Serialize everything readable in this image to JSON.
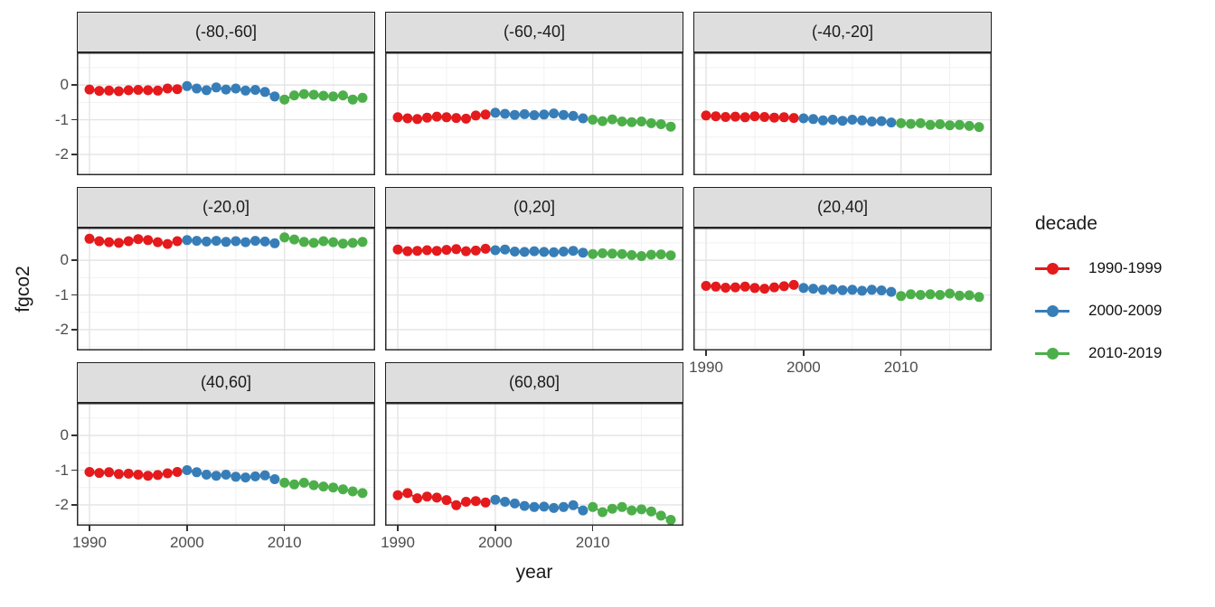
{
  "figure": {
    "background": "#FFFFFF"
  },
  "axes": {
    "xlabel": "year",
    "ylabel": "fgco2",
    "x_tick_labels": [
      "1990",
      "2000",
      "2010"
    ],
    "y_tick_labels": [
      "0",
      "-1",
      "-2"
    ]
  },
  "legend": {
    "title": "decade",
    "items": [
      {
        "label": "1990-1999",
        "color": "#E41A1C"
      },
      {
        "label": "2000-2009",
        "color": "#377EB8"
      },
      {
        "label": "2010-2019",
        "color": "#4DAF4A"
      }
    ]
  },
  "chart_data": {
    "type": "line",
    "title": "",
    "xlabel": "year",
    "ylabel": "fgco2",
    "facet_variable": "latitude band",
    "legend_position": "right",
    "grid": "major+minor",
    "x_tick_values": [
      1990,
      2000,
      2010
    ],
    "y_tick_values": [
      0,
      -1,
      -2
    ],
    "x_minor_ticks": [
      1995,
      2005,
      2015
    ],
    "y_minor_ticks": [
      0.5,
      -0.5,
      -1.5,
      -2.5
    ],
    "xlim": [
      1988.7,
      2019.3
    ],
    "ylim": [
      -2.6,
      0.94
    ],
    "series_colors": {
      "1990-1999": "#E41A1C",
      "2000-2009": "#377EB8",
      "2010-2019": "#4DAF4A"
    },
    "decades": [
      {
        "name": "1990-1999",
        "years": [
          1990,
          1991,
          1992,
          1993,
          1994,
          1995,
          1996,
          1997,
          1998,
          1999
        ]
      },
      {
        "name": "2000-2009",
        "years": [
          2000,
          2001,
          2002,
          2003,
          2004,
          2005,
          2006,
          2007,
          2008,
          2009
        ]
      },
      {
        "name": "2010-2019",
        "years": [
          2010,
          2011,
          2012,
          2013,
          2014,
          2015,
          2016,
          2017,
          2018
        ]
      }
    ],
    "facets": [
      {
        "label": "(-80,-60]",
        "series": {
          "1990-1999": [
            -0.13,
            -0.17,
            -0.16,
            -0.18,
            -0.15,
            -0.14,
            -0.15,
            -0.16,
            -0.1,
            -0.12
          ],
          "2000-2009": [
            -0.03,
            -0.1,
            -0.15,
            -0.07,
            -0.13,
            -0.1,
            -0.16,
            -0.14,
            -0.2,
            -0.33
          ],
          "2010-2019": [
            -0.42,
            -0.3,
            -0.26,
            -0.28,
            -0.31,
            -0.33,
            -0.3,
            -0.42,
            -0.37
          ]
        }
      },
      {
        "label": "(-60,-40]",
        "series": {
          "1990-1999": [
            -0.93,
            -0.96,
            -0.98,
            -0.94,
            -0.91,
            -0.93,
            -0.95,
            -0.97,
            -0.88,
            -0.85
          ],
          "2000-2009": [
            -0.8,
            -0.83,
            -0.86,
            -0.84,
            -0.87,
            -0.85,
            -0.82,
            -0.86,
            -0.89,
            -0.96
          ],
          "2010-2019": [
            -1.0,
            -1.04,
            -0.99,
            -1.05,
            -1.07,
            -1.05,
            -1.1,
            -1.13,
            -1.2
          ]
        }
      },
      {
        "label": "(-40,-20]",
        "series": {
          "1990-1999": [
            -0.88,
            -0.9,
            -0.92,
            -0.91,
            -0.93,
            -0.9,
            -0.92,
            -0.94,
            -0.93,
            -0.95
          ],
          "2000-2009": [
            -0.96,
            -0.98,
            -1.02,
            -1.0,
            -1.03,
            -1.0,
            -1.02,
            -1.05,
            -1.04,
            -1.08
          ],
          "2010-2019": [
            -1.1,
            -1.12,
            -1.1,
            -1.15,
            -1.13,
            -1.16,
            -1.15,
            -1.18,
            -1.21
          ]
        }
      },
      {
        "label": "(-20,0]",
        "series": {
          "1990-1999": [
            0.62,
            0.55,
            0.52,
            0.5,
            0.55,
            0.61,
            0.58,
            0.52,
            0.47,
            0.55
          ],
          "2000-2009": [
            0.58,
            0.56,
            0.54,
            0.56,
            0.53,
            0.55,
            0.52,
            0.56,
            0.54,
            0.49
          ],
          "2010-2019": [
            0.66,
            0.6,
            0.53,
            0.5,
            0.55,
            0.52,
            0.48,
            0.5,
            0.53
          ]
        }
      },
      {
        "label": "(0,20]",
        "series": {
          "1990-1999": [
            0.31,
            0.26,
            0.27,
            0.29,
            0.27,
            0.3,
            0.32,
            0.26,
            0.28,
            0.33
          ],
          "2000-2009": [
            0.29,
            0.31,
            0.25,
            0.24,
            0.26,
            0.24,
            0.23,
            0.25,
            0.27,
            0.22
          ],
          "2010-2019": [
            0.18,
            0.2,
            0.19,
            0.18,
            0.15,
            0.12,
            0.16,
            0.17,
            0.14
          ]
        }
      },
      {
        "label": "(20,40]",
        "series": {
          "1990-1999": [
            -0.74,
            -0.76,
            -0.79,
            -0.78,
            -0.76,
            -0.8,
            -0.82,
            -0.78,
            -0.75,
            -0.71
          ],
          "2000-2009": [
            -0.8,
            -0.82,
            -0.85,
            -0.84,
            -0.86,
            -0.85,
            -0.88,
            -0.85,
            -0.87,
            -0.91
          ],
          "2010-2019": [
            -1.03,
            -0.98,
            -1.0,
            -0.98,
            -1.0,
            -0.96,
            -1.02,
            -1.01,
            -1.06
          ]
        }
      },
      {
        "label": "(40,60]",
        "series": {
          "1990-1999": [
            -1.05,
            -1.08,
            -1.06,
            -1.11,
            -1.1,
            -1.13,
            -1.16,
            -1.14,
            -1.09,
            -1.05
          ],
          "2000-2009": [
            -1.0,
            -1.06,
            -1.13,
            -1.16,
            -1.13,
            -1.19,
            -1.21,
            -1.18,
            -1.15,
            -1.26
          ],
          "2010-2019": [
            -1.36,
            -1.41,
            -1.36,
            -1.43,
            -1.47,
            -1.5,
            -1.55,
            -1.61,
            -1.66
          ]
        }
      },
      {
        "label": "(60,80]",
        "series": {
          "1990-1999": [
            -1.72,
            -1.66,
            -1.81,
            -1.76,
            -1.79,
            -1.86,
            -2.01,
            -1.91,
            -1.89,
            -1.93
          ],
          "2000-2009": [
            -1.85,
            -1.91,
            -1.96,
            -2.03,
            -2.06,
            -2.05,
            -2.09,
            -2.06,
            -2.01,
            -2.16
          ],
          "2010-2019": [
            -2.06,
            -2.21,
            -2.11,
            -2.06,
            -2.16,
            -2.13,
            -2.19,
            -2.31,
            -2.43
          ]
        }
      }
    ]
  },
  "style_colors": {
    "strip_background": "#DEDEDE",
    "strip_border": "#1F1F1F",
    "panel_border": "#2B2B2B",
    "grid_major": "#E4E4E4",
    "grid_minor": "#F1F1F1",
    "tick_label": "#4D4D4D"
  }
}
